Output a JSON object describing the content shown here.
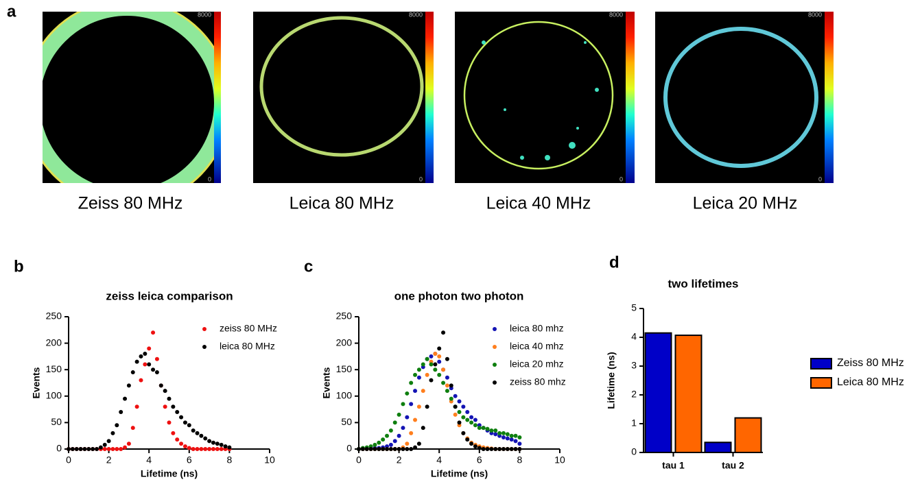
{
  "panel_labels": [
    "a",
    "b",
    "c",
    "d"
  ],
  "images": [
    {
      "label": "Zeiss 80 MHz",
      "scale_max": "8000",
      "scale_min": "0"
    },
    {
      "label": "Leica 80 MHz",
      "scale_max": "8000",
      "scale_min": "0"
    },
    {
      "label": "Leica 40 MHz",
      "scale_max": "8000",
      "scale_min": "0"
    },
    {
      "label": "Leica 20 MHz",
      "scale_max": "8000",
      "scale_min": "0"
    }
  ],
  "chart_data": [
    {
      "type": "scatter",
      "title": "zeiss leica comparison",
      "x_label": "Lifetime (ns)",
      "y_label": "Events",
      "x": [
        0,
        0.2,
        0.4,
        0.6,
        0.8,
        1,
        1.2,
        1.4,
        1.6,
        1.8,
        2,
        2.2,
        2.4,
        2.6,
        2.8,
        3,
        3.2,
        3.4,
        3.6,
        3.8,
        4,
        4.2,
        4.4,
        4.6,
        4.8,
        5,
        5.2,
        5.4,
        5.6,
        5.8,
        6,
        6.2,
        6.4,
        6.6,
        6.8,
        7,
        7.2,
        7.4,
        7.6,
        7.8,
        8
      ],
      "xlim": [
        0,
        10
      ],
      "xticks": [
        0,
        2,
        4,
        6,
        8,
        10
      ],
      "ylim": [
        0,
        250
      ],
      "yticks": [
        0,
        50,
        100,
        150,
        200,
        250
      ],
      "series": [
        {
          "name": "zeiss 80 MHz",
          "color": "#ee1111",
          "values": [
            0,
            0,
            0,
            0,
            0,
            0,
            0,
            0,
            0,
            0,
            0,
            0,
            0,
            0,
            3,
            10,
            40,
            80,
            130,
            160,
            190,
            220,
            170,
            120,
            80,
            50,
            30,
            18,
            10,
            5,
            2,
            0,
            0,
            0,
            0,
            0,
            0,
            0,
            0,
            0,
            0
          ]
        },
        {
          "name": "leica 80 MHz",
          "color": "#000000",
          "values": [
            0,
            0,
            0,
            0,
            0,
            0,
            0,
            0,
            3,
            8,
            15,
            30,
            45,
            70,
            95,
            120,
            145,
            165,
            175,
            180,
            160,
            150,
            145,
            120,
            110,
            95,
            80,
            70,
            60,
            50,
            45,
            35,
            30,
            25,
            20,
            15,
            12,
            10,
            8,
            5,
            3
          ]
        }
      ]
    },
    {
      "type": "scatter",
      "title": "one photon two photon",
      "x_label": "Lifetime (ns)",
      "y_label": "Events",
      "x": [
        0,
        0.2,
        0.4,
        0.6,
        0.8,
        1,
        1.2,
        1.4,
        1.6,
        1.8,
        2,
        2.2,
        2.4,
        2.6,
        2.8,
        3,
        3.2,
        3.4,
        3.6,
        3.8,
        4,
        4.2,
        4.4,
        4.6,
        4.8,
        5,
        5.2,
        5.4,
        5.6,
        5.8,
        6,
        6.2,
        6.4,
        6.6,
        6.8,
        7,
        7.2,
        7.4,
        7.6,
        7.8,
        8
      ],
      "xlim": [
        0,
        10
      ],
      "xticks": [
        0,
        2,
        4,
        6,
        8,
        10
      ],
      "ylim": [
        0,
        250
      ],
      "yticks": [
        0,
        50,
        100,
        150,
        200,
        250
      ],
      "series": [
        {
          "name": "leica 80 mhz",
          "color": "#1414b4",
          "values": [
            0,
            0,
            0,
            1,
            2,
            2,
            3,
            5,
            8,
            15,
            25,
            40,
            60,
            85,
            110,
            135,
            155,
            170,
            175,
            180,
            165,
            150,
            135,
            115,
            100,
            90,
            80,
            70,
            60,
            55,
            45,
            40,
            35,
            30,
            28,
            25,
            22,
            20,
            18,
            15,
            10
          ]
        },
        {
          "name": "leica 40 mhz",
          "color": "#ff7f1e",
          "values": [
            0,
            0,
            0,
            0,
            0,
            0,
            0,
            0,
            0,
            0,
            0,
            3,
            10,
            30,
            55,
            80,
            110,
            140,
            165,
            180,
            175,
            150,
            120,
            90,
            65,
            45,
            30,
            20,
            12,
            8,
            5,
            3,
            2,
            1,
            0,
            0,
            0,
            0,
            0,
            0,
            0
          ]
        },
        {
          "name": "leica 20 mhz",
          "color": "#0f7f0f",
          "values": [
            0,
            2,
            3,
            5,
            8,
            12,
            18,
            25,
            35,
            50,
            65,
            85,
            105,
            125,
            140,
            150,
            160,
            170,
            160,
            150,
            140,
            125,
            110,
            95,
            80,
            70,
            60,
            55,
            50,
            45,
            40,
            40,
            38,
            35,
            35,
            30,
            30,
            28,
            25,
            25,
            22
          ]
        },
        {
          "name": "zeiss 80 mhz",
          "color": "#000000",
          "values": [
            0,
            0,
            0,
            0,
            0,
            0,
            0,
            0,
            0,
            0,
            0,
            0,
            0,
            0,
            3,
            10,
            40,
            80,
            130,
            160,
            190,
            220,
            170,
            120,
            80,
            50,
            30,
            18,
            10,
            5,
            2,
            0,
            0,
            0,
            0,
            0,
            0,
            0,
            0,
            0,
            0
          ]
        }
      ]
    },
    {
      "type": "bar",
      "title": "two lifetimes",
      "y_label": "Lifetime (ns)",
      "categories": [
        "tau 1",
        "tau 2"
      ],
      "ylim": [
        0,
        5
      ],
      "yticks": [
        0,
        1,
        2,
        3,
        4,
        5
      ],
      "series": [
        {
          "name": "Zeiss 80 MHz",
          "color": "#0000c8",
          "values": [
            4.15,
            0.35
          ]
        },
        {
          "name": "Leica 80 MHz",
          "color": "#ff6600",
          "values": [
            4.07,
            1.2
          ]
        }
      ]
    }
  ]
}
